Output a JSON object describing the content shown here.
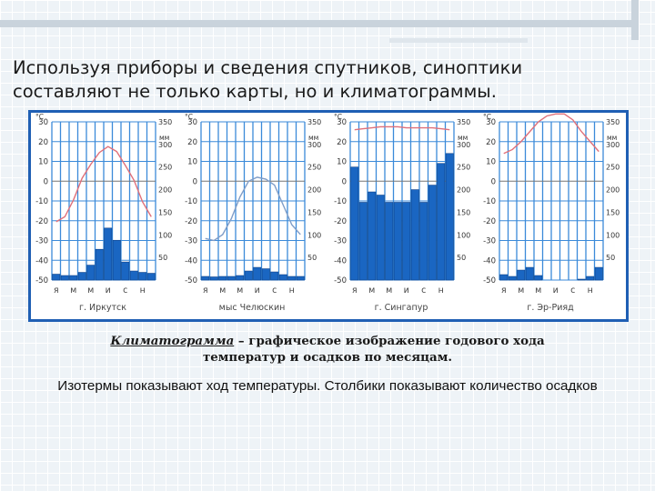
{
  "slide": {
    "title_lines": [
      "Используя приборы и сведения спутников, синоптики",
      "составляют не только карты, но и климатограммы."
    ],
    "definition": {
      "term": "Климатограмма",
      "dash": " – ",
      "line1_rest": "графическое изображение годового хода",
      "line2": "температур и осадков по месяцам."
    },
    "note": "Изотермы показывают ход температуры. Столбики показывают количество осадков"
  },
  "colors": {
    "frame": "#1f5fb4",
    "grid": "#3b8ad9",
    "bar_fill": "#1a66c2",
    "bar_stroke": "#0b3f87",
    "temp_line": "#e0707a",
    "temp_line_cold": "#7f9dc8",
    "zero_line": "#777777"
  },
  "chart_data": [
    {
      "type": "bar",
      "city": "г. Иркутск",
      "months": [
        "я",
        "м",
        "м",
        "и",
        "с",
        "н"
      ],
      "temp_unit": "°C",
      "precip_unit": "мм",
      "temp_ticks": [
        "30",
        "20",
        "10",
        "0",
        "-10",
        "-20",
        "-30",
        "-40",
        "-50"
      ],
      "precip_ticks": [
        "350",
        "300",
        "250",
        "200",
        "150",
        "100",
        "50",
        "0"
      ],
      "temp_ylim": [
        -50,
        30
      ],
      "precip_ylim": [
        0,
        350
      ],
      "temperature": [
        -20.5,
        -18,
        -9.5,
        1.5,
        8.5,
        14.5,
        17.5,
        15,
        8,
        0.5,
        -10.5,
        -18
      ],
      "precipitation": [
        13,
        10,
        10,
        17,
        33,
        68,
        115,
        88,
        40,
        20,
        17,
        15
      ],
      "right_axis_labels": true
    },
    {
      "type": "bar",
      "city": "мыс Челюскин",
      "months": [
        "я",
        "м",
        "м",
        "и",
        "с",
        "н"
      ],
      "temp_unit": "°C",
      "precip_unit": "мм",
      "temp_ticks": [
        "30",
        "20",
        "10",
        "0",
        "-10",
        "-20",
        "-30",
        "-40",
        "-50"
      ],
      "precip_ticks": [
        "350",
        "300",
        "250",
        "200",
        "150",
        "100",
        "50",
        "0"
      ],
      "temp_ylim": [
        -50,
        30
      ],
      "precip_ylim": [
        0,
        350
      ],
      "temperature": [
        -29,
        -30,
        -27,
        -19,
        -8,
        0,
        2,
        1,
        -2,
        -12,
        -22,
        -27
      ],
      "precipitation": [
        8,
        7,
        8,
        8,
        10,
        20,
        28,
        25,
        18,
        12,
        8,
        8
      ],
      "right_axis_labels": true
    },
    {
      "type": "bar",
      "city": "г. Сингапур",
      "months": [
        "я",
        "м",
        "м",
        "и",
        "с",
        "н"
      ],
      "temp_unit": "°C",
      "precip_unit": "мм",
      "temp_ticks": [
        "30",
        "20",
        "10",
        "0",
        "-10",
        "-20",
        "-30",
        "-40",
        "-50"
      ],
      "precip_ticks": [
        "350",
        "300",
        "250",
        "200",
        "150",
        "100",
        "50",
        "0"
      ],
      "temp_ylim": [
        -50,
        30
      ],
      "precip_ylim": [
        0,
        350
      ],
      "temperature": [
        26,
        26.5,
        27,
        27.5,
        27.5,
        27.5,
        27,
        27,
        27,
        27,
        26.5,
        26
      ],
      "precipitation": [
        250,
        172,
        195,
        188,
        172,
        172,
        172,
        200,
        172,
        210,
        258,
        280
      ],
      "right_axis_labels": true
    },
    {
      "type": "bar",
      "city": "г. Эр-Рияд",
      "months": [
        "я",
        "м",
        "м",
        "и",
        "с",
        "н"
      ],
      "temp_unit": "°C",
      "precip_unit": "мм",
      "temp_ticks": [
        "30",
        "20",
        "10",
        "0",
        "-10",
        "-20",
        "-30",
        "-40",
        "-50"
      ],
      "precip_ticks": [
        "350",
        "300",
        "250",
        "200",
        "150",
        "100",
        "50",
        "0"
      ],
      "temp_ylim": [
        -50,
        30
      ],
      "precip_ylim": [
        0,
        350
      ],
      "temperature": [
        14,
        16,
        20,
        25,
        30,
        33,
        34,
        34,
        31,
        25,
        20,
        15
      ],
      "precipitation": [
        12,
        8,
        22,
        28,
        10,
        0,
        0,
        0,
        0,
        2,
        8,
        28
      ],
      "right_axis_labels": true
    }
  ]
}
